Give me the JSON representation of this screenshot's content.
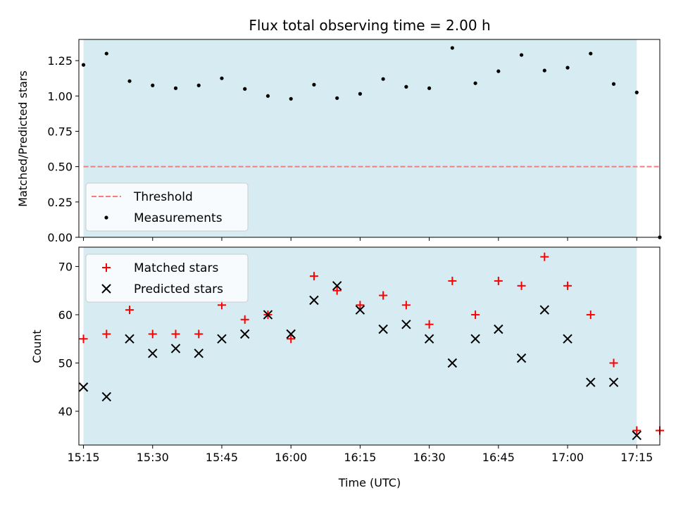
{
  "chart_data": {
    "type": "scatter",
    "title": "Flux total observing time = 2.00 h",
    "xlabel": "Time (UTC)",
    "x_unit": "time of day (UTC), hh:mm",
    "x_ticks": [
      "15:15",
      "15:30",
      "15:45",
      "16:00",
      "16:15",
      "16:30",
      "16:45",
      "17:00",
      "17:15"
    ],
    "xlim": [
      "15:14",
      "17:20"
    ],
    "shaded_interval": {
      "start": "15:15",
      "end": "17:15",
      "color": "#add8e6"
    },
    "panels": [
      {
        "id": "ratio",
        "ylabel": "Matched/Predicted stars",
        "ylim": [
          0.0,
          1.4
        ],
        "yticks": [
          "0.00",
          "0.25",
          "0.50",
          "0.75",
          "1.00",
          "1.25"
        ],
        "legend_location": "lower-left",
        "threshold": {
          "name": "Threshold",
          "value": 0.5,
          "from": "15:15",
          "to": "17:20",
          "color": "#f08080",
          "style": "dashed"
        },
        "series": [
          {
            "name": "Measurements",
            "marker": "dot",
            "color": "#000000",
            "x": [
              "15:15",
              "15:20",
              "15:25",
              "15:30",
              "15:35",
              "15:40",
              "15:45",
              "15:50",
              "15:55",
              "16:00",
              "16:05",
              "16:10",
              "16:15",
              "16:20",
              "16:25",
              "16:30",
              "16:35",
              "16:40",
              "16:45",
              "16:50",
              "16:55",
              "17:00",
              "17:05",
              "17:10",
              "17:15",
              "17:20"
            ],
            "y": [
              1.22,
              1.3,
              1.105,
              1.075,
              1.055,
              1.075,
              1.125,
              1.05,
              1.0,
              0.98,
              1.08,
              0.985,
              1.015,
              1.12,
              1.065,
              1.055,
              1.34,
              1.09,
              1.175,
              1.29,
              1.18,
              1.2,
              1.3,
              1.085,
              1.025,
              0.0
            ]
          }
        ]
      },
      {
        "id": "count",
        "ylabel": "Count",
        "ylim": [
          33,
          74
        ],
        "yticks": [
          "40",
          "50",
          "60",
          "70"
        ],
        "legend_location": "upper-left",
        "series": [
          {
            "name": "Matched stars",
            "marker": "plus",
            "color": "#ff0000",
            "x": [
              "15:15",
              "15:20",
              "15:25",
              "15:30",
              "15:35",
              "15:40",
              "15:45",
              "15:50",
              "15:55",
              "16:00",
              "16:05",
              "16:10",
              "16:15",
              "16:20",
              "16:25",
              "16:30",
              "16:35",
              "16:40",
              "16:45",
              "16:50",
              "16:55",
              "17:00",
              "17:05",
              "17:10",
              "17:15",
              "17:20"
            ],
            "y": [
              55,
              56,
              61,
              56,
              56,
              56,
              62,
              59,
              60,
              55,
              68,
              65,
              62,
              64,
              62,
              58,
              67,
              60,
              67,
              66,
              72,
              66,
              60,
              50,
              36,
              36
            ]
          },
          {
            "name": "Predicted stars",
            "marker": "x",
            "color": "#000000",
            "x": [
              "15:15",
              "15:20",
              "15:25",
              "15:30",
              "15:35",
              "15:40",
              "15:45",
              "15:50",
              "15:55",
              "16:00",
              "16:05",
              "16:10",
              "16:15",
              "16:20",
              "16:25",
              "16:30",
              "16:35",
              "16:40",
              "16:45",
              "16:50",
              "16:55",
              "17:00",
              "17:05",
              "17:10",
              "17:15"
            ],
            "y": [
              45,
              43,
              55,
              52,
              53,
              52,
              55,
              56,
              60,
              56,
              63,
              66,
              61,
              57,
              58,
              55,
              50,
              55,
              57,
              51,
              61,
              55,
              46,
              46,
              35
            ]
          }
        ]
      }
    ]
  }
}
